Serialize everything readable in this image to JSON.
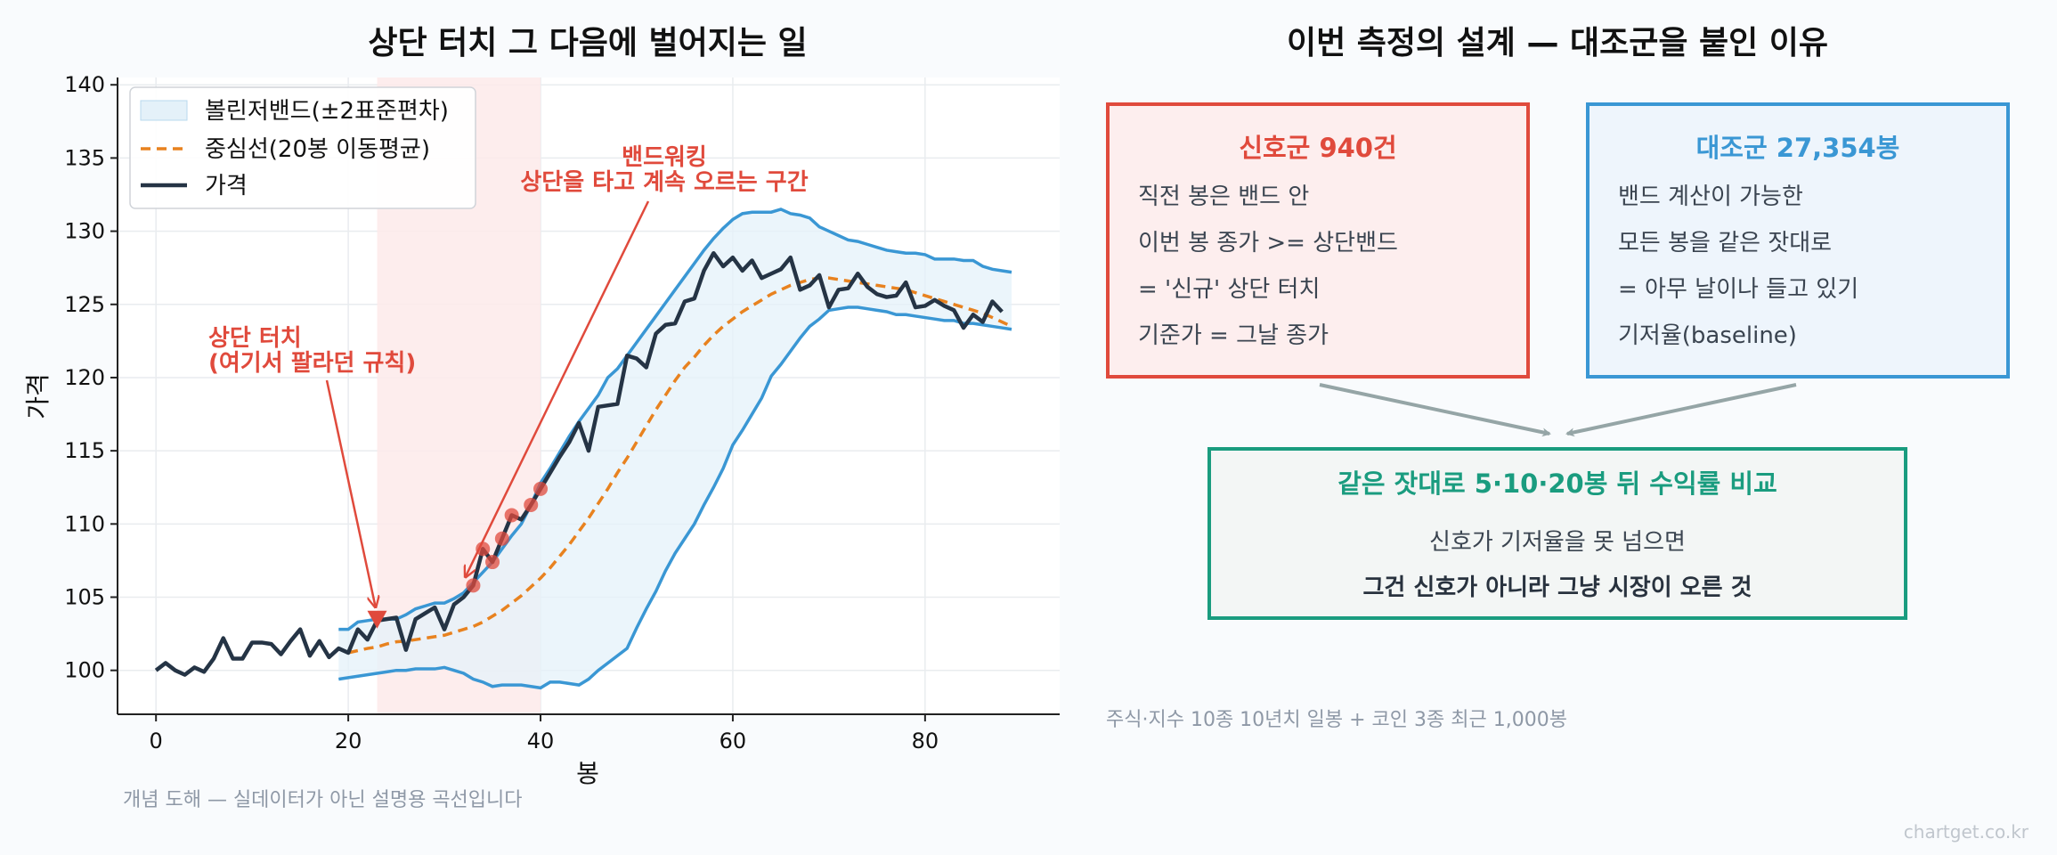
{
  "chart_data": {
    "type": "line",
    "title": "상단 터치 그 다음에 벌어지는 일",
    "xlabel": "봉",
    "ylabel": "가격",
    "xlim": [
      -4,
      94
    ],
    "ylim": [
      97,
      140.5
    ],
    "xticks": [
      0,
      20,
      40,
      60,
      80
    ],
    "yticks": [
      100,
      105,
      110,
      115,
      120,
      125,
      130,
      135,
      140
    ],
    "grid": true,
    "legend_position": "top-left",
    "legend": {
      "band": "볼린저밴드(±2표준편차)",
      "mid": "중심선(20봉 이동평균)",
      "price": "가격"
    },
    "highlight_region": {
      "x_start": 23,
      "x_end": 40
    },
    "price_x_start": 0,
    "price": [
      100,
      100.5,
      100,
      99.7,
      100.2,
      99.9,
      100.8,
      102.2,
      100.8,
      100.8,
      101.9,
      101.9,
      101.8,
      101.1,
      102,
      102.8,
      101,
      102,
      100.9,
      101.5,
      101.2,
      102.8,
      102.1,
      103.4,
      103.5,
      103.6,
      101.4,
      103.5,
      103.9,
      104.3,
      102.8,
      104.5,
      105,
      105.8,
      108.3,
      107.4,
      109,
      110.6,
      110.3,
      111.3,
      112.4,
      113.5,
      114.6,
      115.6,
      116.9,
      115,
      118,
      118.1,
      118.2,
      121.5,
      121.3,
      120.7,
      123,
      123.6,
      123.7,
      125.2,
      125.4,
      127.3,
      128.5,
      127.6,
      128.2,
      127.3,
      128,
      126.8,
      127.1,
      127.4,
      128.2,
      126,
      126.3,
      127,
      124.8,
      126,
      126.1,
      127.1,
      126.2,
      125.7,
      125.5,
      125.6,
      126.5,
      124.8,
      124.9,
      125.3,
      124.9,
      124.6,
      123.4,
      124.3,
      123.8,
      125.2,
      124.5
    ],
    "band_x_start": 19,
    "band_upper": [
      102.8,
      102.8,
      103.3,
      103.4,
      103.5,
      103.5,
      103.5,
      103.8,
      104.2,
      104.4,
      104.6,
      104.6,
      104.9,
      105.3,
      106.0,
      106.7,
      107.4,
      108.3,
      109.2,
      110.0,
      111.3,
      112.8,
      113.8,
      114.9,
      116.0,
      117.0,
      117.9,
      118.8,
      120.0,
      120.6,
      121.5,
      122.4,
      123.3,
      124.2,
      125.1,
      126.0,
      126.9,
      127.8,
      128.7,
      129.5,
      130.2,
      130.8,
      131.2,
      131.3,
      131.3,
      131.3,
      131.5,
      131.2,
      131.1,
      130.9,
      130.3,
      130.0,
      129.7,
      129.4,
      129.3,
      129.1,
      128.9,
      128.7,
      128.6,
      128.5,
      128.5,
      128.4,
      128.1,
      128.1,
      128.1,
      128.0,
      128.0,
      127.6,
      127.4,
      127.3,
      127.2
    ],
    "band_lower": [
      99.4,
      99.5,
      99.6,
      99.7,
      99.8,
      99.9,
      100.0,
      100.0,
      100.1,
      100.1,
      100.1,
      100.2,
      100.0,
      99.8,
      99.4,
      99.2,
      98.9,
      99.0,
      99.0,
      99.0,
      98.9,
      98.8,
      99.2,
      99.2,
      99.1,
      99.0,
      99.4,
      100.0,
      100.5,
      101.0,
      101.5,
      102.9,
      104.2,
      105.4,
      106.8,
      108.0,
      109.0,
      110.0,
      111.3,
      112.5,
      113.8,
      115.4,
      116.4,
      117.5,
      118.6,
      120.1,
      120.9,
      121.8,
      122.7,
      123.5,
      124.0,
      124.6,
      124.7,
      124.8,
      124.8,
      124.7,
      124.6,
      124.5,
      124.3,
      124.3,
      124.2,
      124.1,
      124.0,
      123.9,
      123.9,
      123.7,
      123.7,
      123.6,
      123.5,
      123.4,
      123.3
    ],
    "mid_x_start": 20,
    "mid": [
      101.2,
      101.35,
      101.5,
      101.6,
      101.8,
      101.95,
      102.0,
      102.1,
      102.2,
      102.3,
      102.4,
      102.6,
      102.8,
      103.0,
      103.3,
      103.7,
      104.1,
      104.6,
      105.1,
      105.7,
      106.3,
      107.0,
      107.8,
      108.6,
      109.5,
      110.4,
      111.4,
      112.4,
      113.5,
      114.5,
      115.6,
      116.7,
      117.8,
      118.8,
      119.8,
      120.7,
      121.4,
      122.2,
      122.9,
      123.5,
      124.0,
      124.5,
      124.9,
      125.3,
      125.7,
      126.0,
      126.3,
      126.5,
      126.7,
      126.8,
      126.8,
      126.7,
      126.6,
      126.5,
      126.4,
      126.3,
      126.2,
      126.1,
      126.0,
      125.8,
      125.6,
      125.4,
      125.2,
      125.0,
      124.8,
      124.6,
      124.4,
      124.1,
      123.8,
      123.5
    ],
    "touch_points": [
      [
        33,
        105.8
      ],
      [
        34,
        108.3
      ],
      [
        35,
        107.4
      ],
      [
        36,
        109
      ],
      [
        37,
        110.6
      ],
      [
        39,
        111.3
      ],
      [
        40,
        112.4
      ]
    ],
    "first_touch": [
      23,
      103.4
    ],
    "annotations": {
      "touch_line1": "상단 터치",
      "touch_line2": "(여기서 팔라던 규칙)",
      "walk_line1": "밴드워킹",
      "walk_line2": "상단을 타고 계속 오르는 구간"
    }
  },
  "caption_left": "개념 도해 — 실데이터가 아닌 설명용 곡선입니다",
  "diagram": {
    "title": "이번 측정의 설계 — 대조군을 붙인 이유",
    "signal": {
      "title": "신호군  940건",
      "lines": [
        "직전 봉은 밴드 안",
        "이번 봉 종가 >= 상단밴드",
        "= '신규' 상단 터치",
        "기준가 = 그날 종가"
      ]
    },
    "control": {
      "title": "대조군  27,354봉",
      "lines": [
        "밴드 계산이 가능한",
        "모든 봉을 같은 잣대로",
        "= 아무 날이나 들고 있기",
        "기저율(baseline)"
      ]
    },
    "compare": {
      "title": "같은 잣대로 5·10·20봉 뒤 수익률 비교",
      "line1": "신호가 기저율을 못 넘으면",
      "line2": "그건 신호가 아니라 그냥 시장이 오른 것"
    },
    "footnote": "주식·지수 10종 10년치 일봉 + 코인 3종 최근 1,000봉"
  },
  "watermark": "chartget.co.kr",
  "colors": {
    "price": "#253445",
    "mid": "#e8821f",
    "band_line": "#3a97d4",
    "band_fill": "#e4f1f9",
    "highlight": "#fdeaea",
    "annotation": "#e04a3c",
    "signal": "#e04a3c",
    "control": "#3a97d4",
    "compare": "#1a9c7f"
  }
}
